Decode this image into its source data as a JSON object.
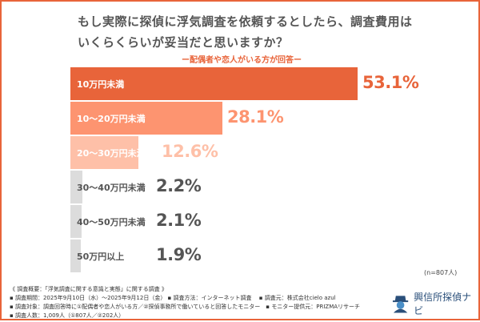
{
  "title_lines": [
    "もし実際に探偵に浮気調査を依頼するとしたら、調査費用は",
    "いくらくらいが妥当だと思いますか？"
  ],
  "subtitle": "ー配偶者や恋人がいる方が回答ー",
  "chart_data": {
    "type": "bar",
    "orientation": "horizontal",
    "title": "もし実際に探偵に浮気調査を依頼するとしたら、調査費用はいくらくらいが妥当だと思いますか？",
    "categories": [
      "10万円未満",
      "10〜20万円未満",
      "20〜30万円未満",
      "30〜40万円未満",
      "40〜50万円未満",
      "50万円以上"
    ],
    "values": [
      53.1,
      28.1,
      12.6,
      2.2,
      2.1,
      1.9
    ],
    "labels": [
      "53.1%",
      "28.1%",
      "12.6%",
      "2.2%",
      "2.1%",
      "1.9%"
    ],
    "bar_colors": [
      "#e8643a",
      "#fd9470",
      "#fec0a8",
      "#dcdcdc",
      "#dcdcdc",
      "#dcdcdc"
    ],
    "category_text_colors": [
      "#ffffff",
      "#ffffff",
      "#ffffff",
      "#555555",
      "#555555",
      "#555555"
    ],
    "value_colors": [
      "#e8643a",
      "#fd9470",
      "#fec0a8",
      "#555555",
      "#555555",
      "#555555"
    ],
    "grid": false,
    "legend": "none"
  },
  "sample_note": "(n=807人)",
  "notes": [
    "《 調査概要：「浮気調査に関する意識と実態」に関する調査 》",
    "▪ 調査期間：2025年9月10日（水）〜2025年9月12日（金） ▪ 調査方法：インターネット調査 　▪ 調査元：株式会社cielo azul",
    "▪ 調査対象：調査回答時に①配偶者や恋人がいる方／②探偵事務所で働いていると回答したモニター　▪ モニター提供元：PRIZMAリサーチ",
    "▪ 調査人数：1,009人（①807人／②202人）"
  ],
  "logo": {
    "text": "興信所探偵ナビ",
    "icon": "detective-icon",
    "color": "#2a4f7a"
  },
  "frame_color": "#e8643a"
}
